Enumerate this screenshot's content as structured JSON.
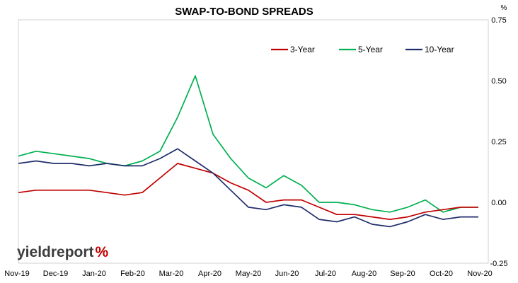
{
  "chart_data": {
    "type": "line",
    "title": "SWAP-TO-BOND SPREADS",
    "y_unit": "%",
    "ylim": [
      -0.25,
      0.75
    ],
    "y_ticks": [
      "-0.25",
      "0.00",
      "0.25",
      "0.50",
      "0.75"
    ],
    "y_tick_values": [
      -0.25,
      0,
      0.25,
      0.5,
      0.75
    ],
    "y_axis_position": "right",
    "grid": false,
    "legend_position": "top-right",
    "x_ticks": [
      "Nov-19",
      "Dec-19",
      "Jan-20",
      "Feb-20",
      "Mar-20",
      "Apr-20",
      "May-20",
      "Jun-20",
      "Jul-20",
      "Aug-20",
      "Sep-20",
      "Oct-20",
      "Nov-20"
    ],
    "x": [
      "Nov-19",
      "Nov-19",
      "Dec-19",
      "Dec-19",
      "Jan-20",
      "Jan-20",
      "Feb-20",
      "Feb-20",
      "Feb-20",
      "Mar-20",
      "Mar-20",
      "Mar-20",
      "Apr-20",
      "Apr-20",
      "May-20",
      "May-20",
      "Jun-20",
      "Jun-20",
      "Jul-20",
      "Jul-20",
      "Aug-20",
      "Aug-20",
      "Sep-20",
      "Sep-20",
      "Oct-20",
      "Oct-20",
      "Nov-20"
    ],
    "series": [
      {
        "name": "3-Year",
        "color": "#c00000",
        "values": [
          0.04,
          0.05,
          0.05,
          0.05,
          0.05,
          0.04,
          0.03,
          0.04,
          0.1,
          0.16,
          0.14,
          0.12,
          0.08,
          0.05,
          0.0,
          0.01,
          0.01,
          -0.02,
          -0.05,
          -0.05,
          -0.06,
          -0.07,
          -0.06,
          -0.04,
          -0.03,
          -0.02,
          -0.02
        ]
      },
      {
        "name": "5-Year",
        "color": "#00b050",
        "values": [
          0.19,
          0.21,
          0.2,
          0.19,
          0.18,
          0.16,
          0.15,
          0.17,
          0.21,
          0.35,
          0.52,
          0.28,
          0.18,
          0.1,
          0.06,
          0.11,
          0.07,
          0.0,
          0.0,
          -0.01,
          -0.03,
          -0.04,
          -0.02,
          0.01,
          -0.04,
          -0.02,
          -0.02
        ]
      },
      {
        "name": "10-Year",
        "color": "#1f2d6b",
        "values": [
          0.16,
          0.17,
          0.16,
          0.16,
          0.15,
          0.16,
          0.15,
          0.15,
          0.18,
          0.22,
          0.17,
          0.12,
          0.05,
          -0.02,
          -0.03,
          -0.01,
          -0.02,
          -0.07,
          -0.08,
          -0.06,
          -0.09,
          -0.1,
          -0.08,
          -0.05,
          -0.07,
          -0.06,
          -0.06
        ]
      }
    ]
  },
  "logo": {
    "word": "yieldreport",
    "symbol": "%",
    "word_color": "#3d3d3d",
    "symbol_colors": [
      "#c00000",
      "#00b050"
    ]
  }
}
